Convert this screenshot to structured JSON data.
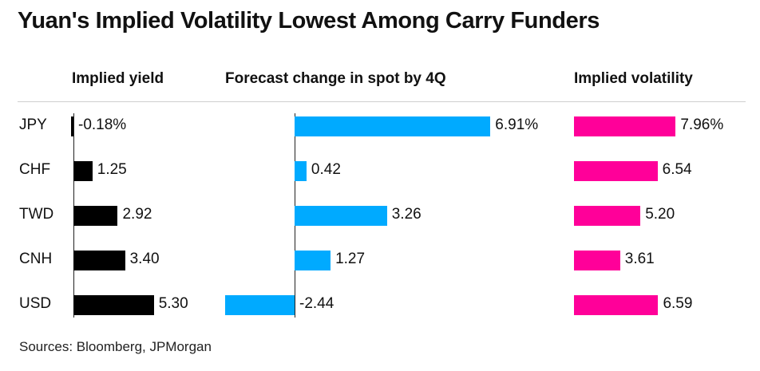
{
  "title": "Yuan's Implied Volatility Lowest Among Carry Funders",
  "source": "Sources: Bloomberg, JPMorgan",
  "colors": {
    "yield": "#000000",
    "forecast": "#00aaff",
    "volatility": "#ff0099"
  },
  "chart_data": {
    "type": "bar",
    "categories": [
      "JPY",
      "CHF",
      "TWD",
      "CNH",
      "USD"
    ],
    "series": [
      {
        "name": "Implied yield",
        "values": [
          -0.18,
          1.25,
          2.92,
          3.4,
          5.3
        ],
        "labels": [
          "-0.18%",
          "1.25",
          "2.92",
          "3.40",
          "5.30"
        ]
      },
      {
        "name": "Forecast change in spot by 4Q",
        "values": [
          6.91,
          0.42,
          3.26,
          1.27,
          -2.44
        ],
        "labels": [
          "6.91%",
          "0.42",
          "3.26",
          "1.27",
          "-2.44"
        ]
      },
      {
        "name": "Implied volatility",
        "values": [
          7.96,
          6.54,
          5.2,
          3.61,
          6.59
        ],
        "labels": [
          "7.96%",
          "6.54",
          "5.20",
          "3.61",
          "6.59"
        ]
      }
    ]
  }
}
